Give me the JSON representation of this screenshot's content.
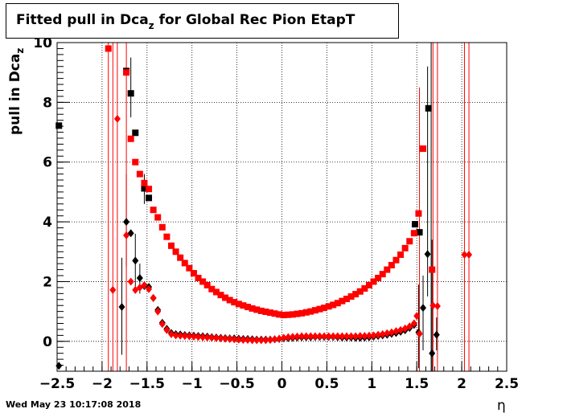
{
  "title": {
    "prefix": "Fitted pull in Dca",
    "subscript": "z",
    "suffix": " for Global Rec Pion EtapT"
  },
  "ylabel": {
    "main": "pull in Dca",
    "subscript": "z"
  },
  "xlabel": "η",
  "datestamp": "Wed May 23 10:17:08 2018",
  "colors": {
    "series1": "#000000",
    "series2": "#ff0000",
    "grid": "#000000"
  },
  "chart_data": {
    "type": "scatter",
    "xlim": [
      -2.5,
      2.5
    ],
    "ylim": [
      -1,
      10
    ],
    "xticks": [
      -2.5,
      -2,
      -1.5,
      -1,
      -0.5,
      0,
      0.5,
      1,
      1.5,
      2,
      2.5
    ],
    "xtick_labels": [
      "−2.5",
      "−2",
      "−1.5",
      "−1",
      "−0.5",
      "0",
      "0.5",
      "1",
      "1.5",
      "2",
      "2.5"
    ],
    "yticks": [
      0,
      2,
      4,
      6,
      8,
      10
    ],
    "ytick_labels": [
      "0",
      "2",
      "4",
      "6",
      "8",
      "10"
    ],
    "grid": true,
    "series": [
      {
        "color": "#000000",
        "marker": "square",
        "points": [
          {
            "x": -2.48,
            "y": 7.22
          },
          {
            "x": -1.73,
            "y": 9.05
          },
          {
            "x": -1.68,
            "y": 8.3
          },
          {
            "x": -1.63,
            "y": 6.98
          },
          {
            "x": -1.53,
            "y": 5.12
          },
          {
            "x": -1.48,
            "y": 4.8
          },
          {
            "x": 1.48,
            "y": 3.92
          },
          {
            "x": 1.53,
            "y": 3.65
          },
          {
            "x": 1.63,
            "y": 7.8
          }
        ]
      },
      {
        "color": "#000000",
        "marker": "diamond",
        "points": [
          {
            "x": -2.48,
            "y": -0.82
          },
          {
            "x": -1.78,
            "y": 1.15
          },
          {
            "x": -1.73,
            "y": 4.0
          },
          {
            "x": -1.68,
            "y": 3.62
          },
          {
            "x": -1.63,
            "y": 2.7
          },
          {
            "x": -1.58,
            "y": 2.12
          },
          {
            "x": -1.53,
            "y": 1.85
          },
          {
            "x": -1.48,
            "y": 1.82
          },
          {
            "x": -1.43,
            "y": 1.45
          },
          {
            "x": -1.38,
            "y": 1.05
          },
          {
            "x": -1.33,
            "y": 0.62
          },
          {
            "x": -1.28,
            "y": 0.42
          },
          {
            "x": -1.23,
            "y": 0.28
          },
          {
            "x": -1.18,
            "y": 0.24
          },
          {
            "x": -1.13,
            "y": 0.23
          },
          {
            "x": -1.08,
            "y": 0.21
          },
          {
            "x": -1.03,
            "y": 0.2
          },
          {
            "x": -0.98,
            "y": 0.19
          },
          {
            "x": -0.93,
            "y": 0.18
          },
          {
            "x": -0.88,
            "y": 0.17
          },
          {
            "x": -0.83,
            "y": 0.16
          },
          {
            "x": -0.78,
            "y": 0.14
          },
          {
            "x": -0.73,
            "y": 0.13
          },
          {
            "x": -0.68,
            "y": 0.12
          },
          {
            "x": -0.63,
            "y": 0.11
          },
          {
            "x": -0.58,
            "y": 0.1
          },
          {
            "x": -0.53,
            "y": 0.1
          },
          {
            "x": -0.48,
            "y": 0.09
          },
          {
            "x": -0.43,
            "y": 0.08
          },
          {
            "x": -0.38,
            "y": 0.08
          },
          {
            "x": -0.33,
            "y": 0.07
          },
          {
            "x": -0.28,
            "y": 0.06
          },
          {
            "x": -0.23,
            "y": 0.06
          },
          {
            "x": -0.18,
            "y": 0.06
          },
          {
            "x": -0.13,
            "y": 0.06
          },
          {
            "x": -0.08,
            "y": 0.07
          },
          {
            "x": -0.03,
            "y": 0.08
          },
          {
            "x": 0.02,
            "y": 0.1
          },
          {
            "x": 0.07,
            "y": 0.11
          },
          {
            "x": 0.12,
            "y": 0.12
          },
          {
            "x": 0.17,
            "y": 0.13
          },
          {
            "x": 0.22,
            "y": 0.14
          },
          {
            "x": 0.27,
            "y": 0.14
          },
          {
            "x": 0.32,
            "y": 0.14
          },
          {
            "x": 0.37,
            "y": 0.15
          },
          {
            "x": 0.42,
            "y": 0.15
          },
          {
            "x": 0.47,
            "y": 0.15
          },
          {
            "x": 0.52,
            "y": 0.15
          },
          {
            "x": 0.57,
            "y": 0.15
          },
          {
            "x": 0.62,
            "y": 0.14
          },
          {
            "x": 0.67,
            "y": 0.13
          },
          {
            "x": 0.72,
            "y": 0.13
          },
          {
            "x": 0.77,
            "y": 0.13
          },
          {
            "x": 0.82,
            "y": 0.12
          },
          {
            "x": 0.87,
            "y": 0.12
          },
          {
            "x": 0.92,
            "y": 0.13
          },
          {
            "x": 0.97,
            "y": 0.14
          },
          {
            "x": 1.02,
            "y": 0.16
          },
          {
            "x": 1.07,
            "y": 0.18
          },
          {
            "x": 1.12,
            "y": 0.2
          },
          {
            "x": 1.17,
            "y": 0.22
          },
          {
            "x": 1.22,
            "y": 0.25
          },
          {
            "x": 1.27,
            "y": 0.28
          },
          {
            "x": 1.32,
            "y": 0.32
          },
          {
            "x": 1.37,
            "y": 0.37
          },
          {
            "x": 1.42,
            "y": 0.45
          },
          {
            "x": 1.47,
            "y": 0.55
          },
          {
            "x": 1.52,
            "y": 0.3
          },
          {
            "x": 1.57,
            "y": 1.12
          },
          {
            "x": 1.62,
            "y": 2.92
          },
          {
            "x": 1.67,
            "y": -0.4
          },
          {
            "x": 1.72,
            "y": 0.22
          }
        ]
      },
      {
        "color": "#ff0000",
        "marker": "square",
        "points": [
          {
            "x": -1.93,
            "y": 9.8
          },
          {
            "x": -1.73,
            "y": 9.0
          },
          {
            "x": -1.68,
            "y": 6.78
          },
          {
            "x": -1.63,
            "y": 6.0
          },
          {
            "x": -1.58,
            "y": 5.6
          },
          {
            "x": -1.53,
            "y": 5.3
          },
          {
            "x": -1.48,
            "y": 5.1
          },
          {
            "x": -1.43,
            "y": 4.4
          },
          {
            "x": -1.38,
            "y": 4.15
          },
          {
            "x": -1.33,
            "y": 3.82
          },
          {
            "x": -1.28,
            "y": 3.5
          },
          {
            "x": -1.23,
            "y": 3.2
          },
          {
            "x": -1.18,
            "y": 3.0
          },
          {
            "x": -1.13,
            "y": 2.8
          },
          {
            "x": -1.08,
            "y": 2.62
          },
          {
            "x": -1.03,
            "y": 2.45
          },
          {
            "x": -0.98,
            "y": 2.28
          },
          {
            "x": -0.93,
            "y": 2.12
          },
          {
            "x": -0.88,
            "y": 2.0
          },
          {
            "x": -0.83,
            "y": 1.88
          },
          {
            "x": -0.78,
            "y": 1.75
          },
          {
            "x": -0.73,
            "y": 1.65
          },
          {
            "x": -0.68,
            "y": 1.55
          },
          {
            "x": -0.63,
            "y": 1.46
          },
          {
            "x": -0.58,
            "y": 1.38
          },
          {
            "x": -0.53,
            "y": 1.31
          },
          {
            "x": -0.48,
            "y": 1.25
          },
          {
            "x": -0.43,
            "y": 1.2
          },
          {
            "x": -0.38,
            "y": 1.15
          },
          {
            "x": -0.33,
            "y": 1.1
          },
          {
            "x": -0.28,
            "y": 1.06
          },
          {
            "x": -0.23,
            "y": 1.02
          },
          {
            "x": -0.18,
            "y": 0.99
          },
          {
            "x": -0.13,
            "y": 0.96
          },
          {
            "x": -0.08,
            "y": 0.93
          },
          {
            "x": -0.03,
            "y": 0.9
          },
          {
            "x": 0.02,
            "y": 0.88
          },
          {
            "x": 0.07,
            "y": 0.89
          },
          {
            "x": 0.12,
            "y": 0.9
          },
          {
            "x": 0.17,
            "y": 0.92
          },
          {
            "x": 0.22,
            "y": 0.94
          },
          {
            "x": 0.27,
            "y": 0.97
          },
          {
            "x": 0.32,
            "y": 1.0
          },
          {
            "x": 0.37,
            "y": 1.04
          },
          {
            "x": 0.42,
            "y": 1.08
          },
          {
            "x": 0.47,
            "y": 1.12
          },
          {
            "x": 0.52,
            "y": 1.17
          },
          {
            "x": 0.57,
            "y": 1.22
          },
          {
            "x": 0.62,
            "y": 1.28
          },
          {
            "x": 0.67,
            "y": 1.35
          },
          {
            "x": 0.72,
            "y": 1.42
          },
          {
            "x": 0.77,
            "y": 1.5
          },
          {
            "x": 0.82,
            "y": 1.58
          },
          {
            "x": 0.87,
            "y": 1.67
          },
          {
            "x": 0.92,
            "y": 1.77
          },
          {
            "x": 0.97,
            "y": 1.88
          },
          {
            "x": 1.02,
            "y": 2.0
          },
          {
            "x": 1.07,
            "y": 2.12
          },
          {
            "x": 1.12,
            "y": 2.25
          },
          {
            "x": 1.17,
            "y": 2.4
          },
          {
            "x": 1.22,
            "y": 2.55
          },
          {
            "x": 1.27,
            "y": 2.72
          },
          {
            "x": 1.32,
            "y": 2.9
          },
          {
            "x": 1.37,
            "y": 3.12
          },
          {
            "x": 1.42,
            "y": 3.35
          },
          {
            "x": 1.47,
            "y": 3.62
          },
          {
            "x": 1.52,
            "y": 4.28
          },
          {
            "x": 1.57,
            "y": 6.45
          },
          {
            "x": 1.67,
            "y": 2.4
          }
        ]
      },
      {
        "color": "#ff0000",
        "marker": "diamond",
        "points": [
          {
            "x": -1.88,
            "y": 1.72
          },
          {
            "x": -1.83,
            "y": 7.45
          },
          {
            "x": -1.73,
            "y": 3.55
          },
          {
            "x": -1.68,
            "y": 2.0
          },
          {
            "x": -1.63,
            "y": 1.72
          },
          {
            "x": -1.58,
            "y": 1.8
          },
          {
            "x": -1.53,
            "y": 1.88
          },
          {
            "x": -1.48,
            "y": 1.75
          },
          {
            "x": -1.43,
            "y": 1.45
          },
          {
            "x": -1.38,
            "y": 1.0
          },
          {
            "x": -1.33,
            "y": 0.58
          },
          {
            "x": -1.28,
            "y": 0.38
          },
          {
            "x": -1.23,
            "y": 0.24
          },
          {
            "x": -1.18,
            "y": 0.2
          },
          {
            "x": -1.13,
            "y": 0.19
          },
          {
            "x": -1.08,
            "y": 0.18
          },
          {
            "x": -1.03,
            "y": 0.17
          },
          {
            "x": -0.98,
            "y": 0.16
          },
          {
            "x": -0.93,
            "y": 0.15
          },
          {
            "x": -0.88,
            "y": 0.14
          },
          {
            "x": -0.83,
            "y": 0.13
          },
          {
            "x": -0.78,
            "y": 0.12
          },
          {
            "x": -0.73,
            "y": 0.11
          },
          {
            "x": -0.68,
            "y": 0.1
          },
          {
            "x": -0.63,
            "y": 0.09
          },
          {
            "x": -0.58,
            "y": 0.08
          },
          {
            "x": -0.53,
            "y": 0.07
          },
          {
            "x": -0.48,
            "y": 0.06
          },
          {
            "x": -0.43,
            "y": 0.05
          },
          {
            "x": -0.38,
            "y": 0.05
          },
          {
            "x": -0.33,
            "y": 0.04
          },
          {
            "x": -0.28,
            "y": 0.04
          },
          {
            "x": -0.23,
            "y": 0.04
          },
          {
            "x": -0.18,
            "y": 0.04
          },
          {
            "x": -0.13,
            "y": 0.05
          },
          {
            "x": -0.08,
            "y": 0.07
          },
          {
            "x": -0.03,
            "y": 0.09
          },
          {
            "x": 0.02,
            "y": 0.12
          },
          {
            "x": 0.07,
            "y": 0.14
          },
          {
            "x": 0.12,
            "y": 0.15
          },
          {
            "x": 0.17,
            "y": 0.16
          },
          {
            "x": 0.22,
            "y": 0.17
          },
          {
            "x": 0.27,
            "y": 0.17
          },
          {
            "x": 0.32,
            "y": 0.17
          },
          {
            "x": 0.37,
            "y": 0.17
          },
          {
            "x": 0.42,
            "y": 0.17
          },
          {
            "x": 0.47,
            "y": 0.17
          },
          {
            "x": 0.52,
            "y": 0.17
          },
          {
            "x": 0.57,
            "y": 0.17
          },
          {
            "x": 0.62,
            "y": 0.17
          },
          {
            "x": 0.67,
            "y": 0.17
          },
          {
            "x": 0.72,
            "y": 0.17
          },
          {
            "x": 0.77,
            "y": 0.17
          },
          {
            "x": 0.82,
            "y": 0.17
          },
          {
            "x": 0.87,
            "y": 0.18
          },
          {
            "x": 0.92,
            "y": 0.18
          },
          {
            "x": 0.97,
            "y": 0.19
          },
          {
            "x": 1.02,
            "y": 0.2
          },
          {
            "x": 1.07,
            "y": 0.22
          },
          {
            "x": 1.12,
            "y": 0.24
          },
          {
            "x": 1.17,
            "y": 0.27
          },
          {
            "x": 1.22,
            "y": 0.3
          },
          {
            "x": 1.27,
            "y": 0.34
          },
          {
            "x": 1.32,
            "y": 0.38
          },
          {
            "x": 1.37,
            "y": 0.43
          },
          {
            "x": 1.42,
            "y": 0.5
          },
          {
            "x": 1.47,
            "y": 0.6
          },
          {
            "x": 1.5,
            "y": 0.85
          },
          {
            "x": 1.53,
            "y": 0.25
          },
          {
            "x": 1.68,
            "y": 1.2
          },
          {
            "x": 1.73,
            "y": 1.18
          },
          {
            "x": 2.03,
            "y": 2.9
          },
          {
            "x": 2.08,
            "y": 2.9
          }
        ]
      }
    ],
    "error_bars": [
      {
        "color": "#ff0000",
        "x": -1.93,
        "ylo": -1,
        "yhi": 10
      },
      {
        "color": "#ff0000",
        "x": -1.88,
        "ylo": -1,
        "yhi": 10
      },
      {
        "color": "#ff0000",
        "x": -1.83,
        "ylo": -1,
        "yhi": 10
      },
      {
        "color": "#000000",
        "x": -1.78,
        "ylo": -0.45,
        "yhi": 2.8
      },
      {
        "color": "#000000",
        "x": -1.73,
        "ylo": 2.5,
        "yhi": 5.6
      },
      {
        "color": "#ff0000",
        "x": -1.73,
        "ylo": -1,
        "yhi": 10
      },
      {
        "color": "#000000",
        "x": -1.68,
        "ylo": 7.5,
        "yhi": 9.5
      },
      {
        "color": "#000000",
        "x": -1.63,
        "ylo": 1.7,
        "yhi": 3.6
      },
      {
        "color": "#000000",
        "x": -1.58,
        "ylo": 1.6,
        "yhi": 2.6
      },
      {
        "color": "#000000",
        "x": -1.53,
        "ylo": 4.6,
        "yhi": 5.6
      },
      {
        "color": "#000000",
        "x": 1.52,
        "ylo": -0.9,
        "yhi": 1.9
      },
      {
        "color": "#ff0000",
        "x": 1.53,
        "ylo": -1,
        "yhi": 8.5
      },
      {
        "color": "#000000",
        "x": 1.57,
        "ylo": -0.3,
        "yhi": 2.2
      },
      {
        "color": "#000000",
        "x": 1.62,
        "ylo": 1.5,
        "yhi": 9.2
      },
      {
        "color": "#000000",
        "x": 1.66,
        "ylo": -1,
        "yhi": 10
      },
      {
        "color": "#000000",
        "x": 1.67,
        "ylo": -1,
        "yhi": 3.4
      },
      {
        "color": "#ff0000",
        "x": 1.68,
        "ylo": -1,
        "yhi": 10
      },
      {
        "color": "#ff0000",
        "x": 1.73,
        "ylo": -1,
        "yhi": 10
      },
      {
        "color": "#000000",
        "x": 1.72,
        "ylo": -0.3,
        "yhi": 0.8
      },
      {
        "color": "#ff0000",
        "x": 2.03,
        "ylo": -1,
        "yhi": 10
      },
      {
        "color": "#ff0000",
        "x": 2.08,
        "ylo": -1,
        "yhi": 10
      }
    ]
  }
}
